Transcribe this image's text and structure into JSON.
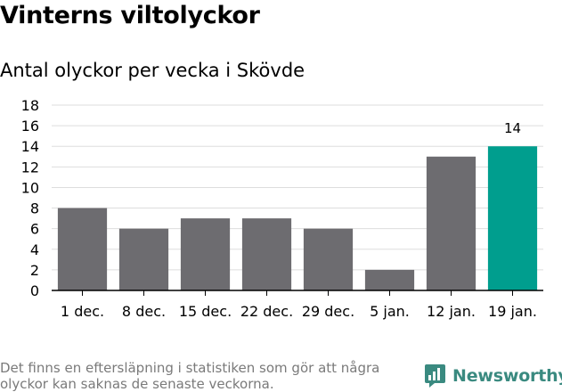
{
  "title": "Vinterns viltolyckor",
  "subtitle": "Antal olyckor per vecka i Skövde",
  "footnote": "Det finns en eftersläpning i statistiken som gör att några olyckor kan saknas de senaste veckorna.",
  "brand": "Newsworthy",
  "colors": {
    "bar": "#6d6c70",
    "highlight": "#009e8e",
    "grid": "#dddddd",
    "axis": "#000000",
    "brand": "#3a8a80"
  },
  "chart_data": {
    "type": "bar",
    "title": "Antal olyckor per vecka i Skövde",
    "xlabel": "",
    "ylabel": "",
    "categories": [
      "1 dec.",
      "8 dec.",
      "15 dec.",
      "22 dec.",
      "29 dec.",
      "5 jan.",
      "12 jan.",
      "19 jan."
    ],
    "values": [
      8,
      6,
      7,
      7,
      6,
      2,
      13,
      14
    ],
    "highlight_index": 7,
    "data_labels": {
      "7": "14"
    },
    "ylim": [
      0,
      18
    ],
    "yticks": [
      0,
      2,
      4,
      6,
      8,
      10,
      12,
      14,
      16,
      18
    ],
    "grid": true
  }
}
